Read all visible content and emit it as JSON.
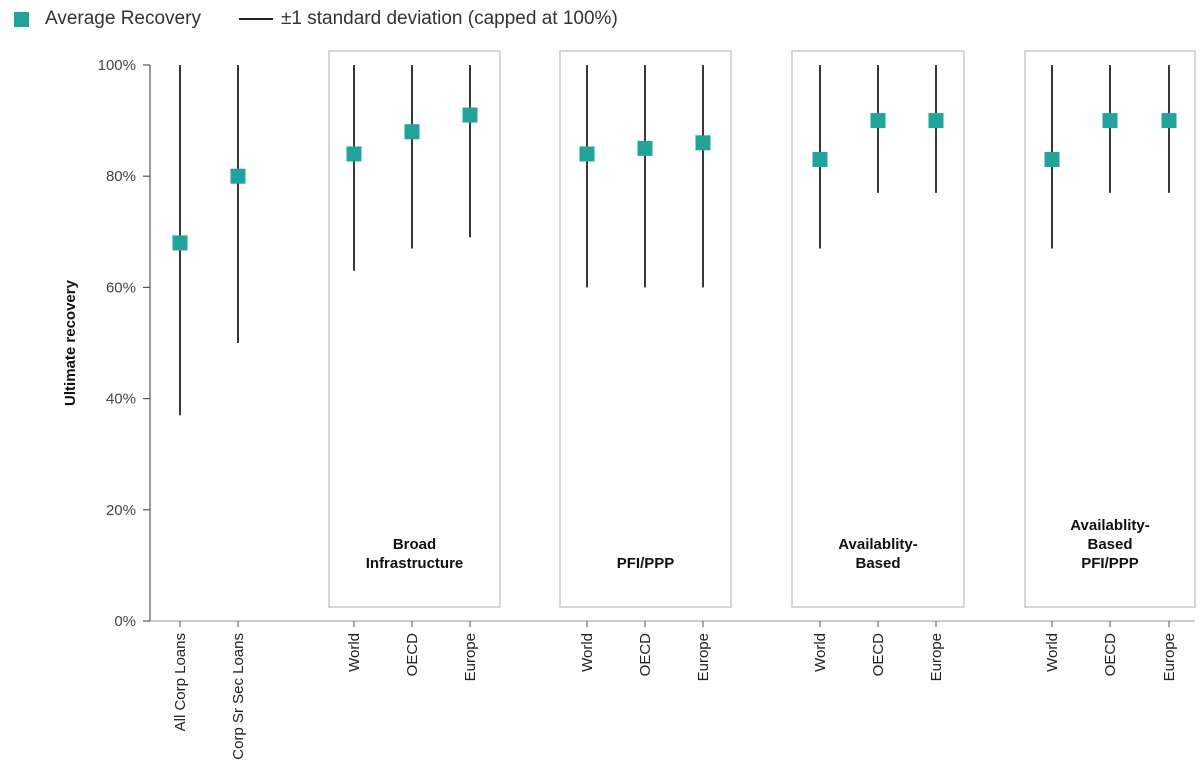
{
  "legend": {
    "marker_label": "Average Recovery",
    "errorbar_label": "±1 standard deviation (capped at 100%)"
  },
  "chart_data": {
    "type": "scatter",
    "ylabel": "Ultimate recovery",
    "ylim": [
      0,
      100
    ],
    "y_ticks": [
      "0%",
      "20%",
      "40%",
      "60%",
      "80%",
      "100%"
    ],
    "grid": false,
    "legend_position": "top-left",
    "marker_color": "#1fa39a",
    "errorbar_color": "#222222",
    "box_border_color": "#c8c8c8",
    "categories": [
      "All Corp Loans",
      "Corp Sr Sec Loans",
      "World",
      "OECD",
      "Europe",
      "World",
      "OECD",
      "Europe",
      "World",
      "OECD",
      "Europe",
      "World",
      "OECD",
      "Europe"
    ],
    "series": [
      {
        "name": "Average Recovery",
        "values": [
          68,
          80,
          84,
          88,
          91,
          84,
          85,
          86,
          83,
          90,
          90,
          83,
          90,
          90
        ],
        "error_low": [
          37,
          50,
          63,
          67,
          69,
          60,
          60,
          60,
          67,
          77,
          77,
          67,
          77,
          77
        ],
        "error_high": [
          100,
          100,
          100,
          100,
          100,
          100,
          100,
          100,
          100,
          100,
          100,
          100,
          100,
          100
        ]
      }
    ],
    "groups": [
      {
        "label": [
          "Broad",
          "Infrastructure"
        ],
        "categories": [
          2,
          3,
          4
        ]
      },
      {
        "label": [
          "PFI/PPP"
        ],
        "categories": [
          5,
          6,
          7
        ]
      },
      {
        "label": [
          "Availablity-",
          "Based"
        ],
        "categories": [
          8,
          9,
          10
        ]
      },
      {
        "label": [
          "Availablity-",
          "Based",
          "PFI/PPP"
        ],
        "categories": [
          11,
          12,
          13
        ]
      }
    ]
  }
}
